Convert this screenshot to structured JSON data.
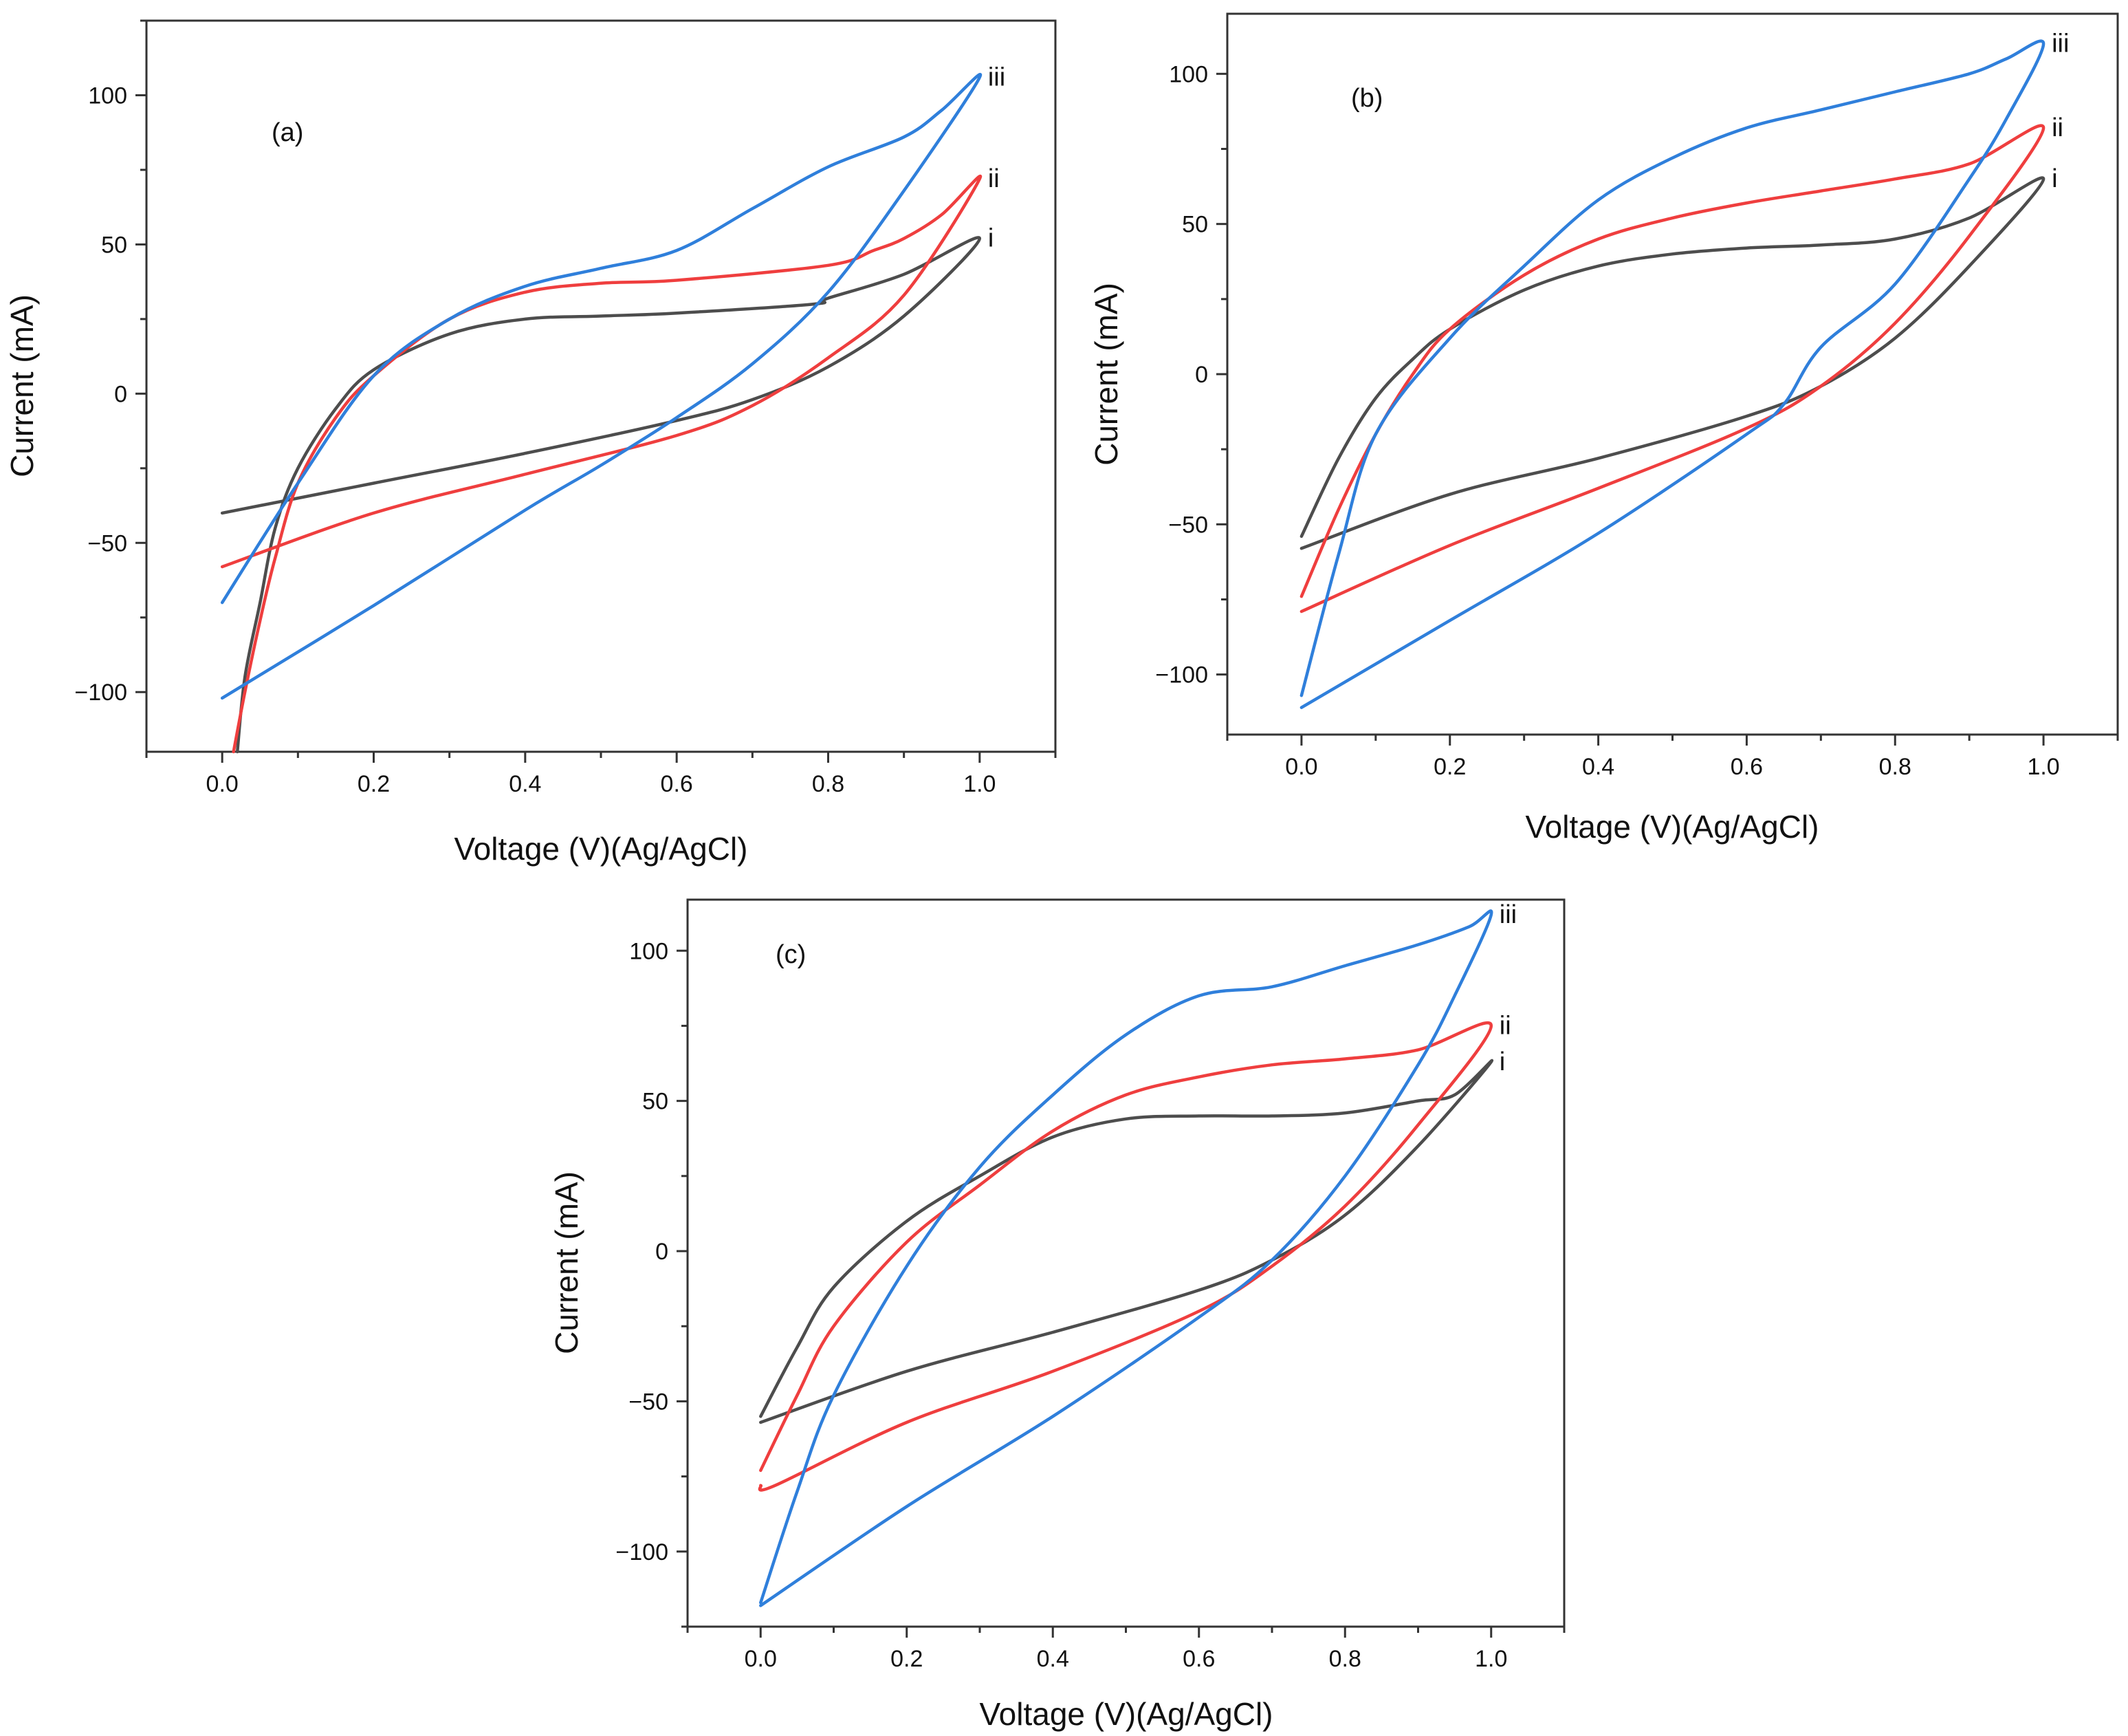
{
  "chart_data": [
    {
      "type": "line",
      "panel": "(a)",
      "xlabel": "Voltage (V)(Ag/AgCl)",
      "ylabel": "Current (mA)",
      "xlim": [
        -0.1,
        1.1
      ],
      "ylim": [
        -120,
        125
      ],
      "xticks": [
        0.0,
        0.2,
        0.4,
        0.6,
        0.8,
        1.0
      ],
      "xtick_labels": [
        "0.0",
        "0.2",
        "0.4",
        "0.6",
        "0.8",
        "1.0"
      ],
      "yticks": [
        -100,
        -50,
        0,
        50,
        100
      ],
      "ytick_labels": [
        "−100",
        "−50",
        "0",
        "50",
        "100"
      ],
      "series": [
        {
          "name": "i",
          "color": "#4d4d4d",
          "x": [
            0.0,
            0.2,
            0.4,
            0.6,
            0.7,
            0.8,
            0.9,
            1.0,
            0.9,
            0.8,
            0.78,
            0.6,
            0.5,
            0.4,
            0.3,
            0.2,
            0.15,
            0.1,
            0.07,
            0.05,
            0.03,
            0.02
          ],
          "y": [
            -40,
            -30,
            -20,
            -9,
            -2,
            9,
            26,
            52,
            40,
            32,
            30,
            27,
            26,
            25,
            20,
            8,
            -5,
            -25,
            -45,
            -70,
            -95,
            -120
          ]
        },
        {
          "name": "ii",
          "color": "#ef3e3e",
          "x": [
            0.0,
            0.2,
            0.4,
            0.6,
            0.7,
            0.8,
            0.9,
            1.0,
            0.95,
            0.9,
            0.86,
            0.8,
            0.6,
            0.5,
            0.4,
            0.3,
            0.2,
            0.15,
            0.1,
            0.07,
            0.05,
            0.03,
            0.015
          ],
          "y": [
            -58,
            -40,
            -27,
            -14,
            -4,
            12,
            33,
            72,
            60,
            52,
            48,
            43,
            38,
            37,
            34,
            25,
            6,
            -8,
            -30,
            -55,
            -76,
            -100,
            -120
          ]
        },
        {
          "name": "iii",
          "color": "#2f7fdb",
          "x": [
            0.0,
            0.2,
            0.4,
            0.5,
            0.6,
            0.7,
            0.8,
            0.9,
            1.0,
            0.95,
            0.9,
            0.8,
            0.7,
            0.6,
            0.5,
            0.4,
            0.3,
            0.2,
            0.1,
            0.0
          ],
          "y": [
            -102,
            -71,
            -39,
            -24,
            -8,
            10,
            34,
            68,
            106,
            95,
            86,
            76,
            62,
            48,
            42,
            36,
            25,
            6,
            -30,
            -70
          ]
        }
      ],
      "curve_labels": [
        "i",
        "ii",
        "iii"
      ]
    },
    {
      "type": "line",
      "panel": "(b)",
      "xlabel": "Voltage (V)(Ag/AgCl)",
      "ylabel": "Current (mA)",
      "xlim": [
        -0.1,
        1.1
      ],
      "ylim": [
        -120,
        120
      ],
      "xticks": [
        0.0,
        0.2,
        0.4,
        0.6,
        0.8,
        1.0
      ],
      "xtick_labels": [
        "0.0",
        "0.2",
        "0.4",
        "0.6",
        "0.8",
        "1.0"
      ],
      "yticks": [
        -100,
        -50,
        0,
        50,
        100
      ],
      "ytick_labels": [
        "−100",
        "−50",
        "0",
        "50",
        "100"
      ],
      "series": [
        {
          "name": "i",
          "color": "#4d4d4d",
          "x": [
            0.0,
            0.2,
            0.4,
            0.6,
            0.7,
            0.8,
            0.9,
            1.0,
            0.9,
            0.8,
            0.7,
            0.6,
            0.5,
            0.4,
            0.3,
            0.2,
            0.15,
            0.1,
            0.05,
            0.0
          ],
          "y": [
            -58,
            -40,
            -28,
            -14,
            -4,
            12,
            36,
            65,
            52,
            45,
            43,
            42,
            40,
            36,
            28,
            15,
            5,
            -8,
            -28,
            -54
          ]
        },
        {
          "name": "ii",
          "color": "#ef3e3e",
          "x": [
            0.0,
            0.2,
            0.4,
            0.6,
            0.7,
            0.8,
            0.9,
            1.0,
            0.9,
            0.8,
            0.7,
            0.6,
            0.5,
            0.4,
            0.3,
            0.2,
            0.15,
            0.1,
            0.05,
            0.0
          ],
          "y": [
            -79,
            -57,
            -38,
            -18,
            -4,
            17,
            46,
            82,
            70,
            65,
            61,
            57,
            52,
            45,
            33,
            15,
            0,
            -20,
            -45,
            -74
          ]
        },
        {
          "name": "iii",
          "color": "#2f7fdb",
          "x": [
            0.0,
            0.2,
            0.4,
            0.6,
            0.65,
            0.7,
            0.8,
            0.9,
            0.95,
            1.0,
            0.95,
            0.9,
            0.8,
            0.7,
            0.6,
            0.5,
            0.4,
            0.3,
            0.2,
            0.1,
            0.05,
            0.0
          ],
          "y": [
            -111,
            -82,
            -53,
            -20,
            -10,
            9,
            30,
            65,
            85,
            110,
            105,
            100,
            94,
            88,
            82,
            72,
            58,
            36,
            12,
            -20,
            -60,
            -107
          ]
        }
      ],
      "curve_labels": [
        "i",
        "ii",
        "iii"
      ]
    },
    {
      "type": "line",
      "panel": "(c)",
      "xlabel": "Voltage (V)(Ag/AgCl)",
      "ylabel": "Current (mA)",
      "xlim": [
        -0.1,
        1.1
      ],
      "ylim": [
        -125,
        117
      ],
      "xticks": [
        0.0,
        0.2,
        0.4,
        0.6,
        0.8,
        1.0
      ],
      "xtick_labels": [
        "0.0",
        "0.2",
        "0.4",
        "0.6",
        "0.8",
        "1.0"
      ],
      "yticks": [
        -100,
        -50,
        0,
        50,
        100
      ],
      "ytick_labels": [
        "−100",
        "−50",
        "0",
        "50",
        "100"
      ],
      "series": [
        {
          "name": "i",
          "color": "#4d4d4d",
          "x": [
            0.0,
            0.2,
            0.4,
            0.6,
            0.7,
            0.8,
            0.9,
            1.0,
            0.95,
            0.9,
            0.8,
            0.7,
            0.6,
            0.5,
            0.4,
            0.3,
            0.2,
            0.1,
            0.05,
            0.0
          ],
          "y": [
            -57,
            -40,
            -27,
            -13,
            -3,
            12,
            35,
            63,
            52,
            50,
            46,
            45,
            45,
            44,
            38,
            25,
            10,
            -12,
            -32,
            -55
          ]
        },
        {
          "name": "ii",
          "color": "#ef3e3e",
          "x": [
            0.0,
            0.02,
            0.2,
            0.4,
            0.6,
            0.7,
            0.8,
            0.9,
            1.0,
            0.9,
            0.8,
            0.7,
            0.6,
            0.5,
            0.4,
            0.3,
            0.2,
            0.1,
            0.05,
            0.0
          ],
          "y": [
            -78,
            -78,
            -57,
            -40,
            -20,
            -5,
            15,
            42,
            75,
            67,
            64,
            62,
            58,
            52,
            40,
            22,
            3,
            -25,
            -48,
            -73
          ]
        },
        {
          "name": "iii",
          "color": "#2f7fdb",
          "x": [
            0.0,
            0.2,
            0.4,
            0.6,
            0.7,
            0.8,
            0.9,
            0.95,
            1.0,
            0.97,
            0.9,
            0.8,
            0.7,
            0.6,
            0.5,
            0.4,
            0.3,
            0.2,
            0.1,
            0.05,
            0.0
          ],
          "y": [
            -118,
            -85,
            -55,
            -22,
            -3,
            25,
            62,
            85,
            112,
            108,
            102,
            95,
            88,
            85,
            72,
            52,
            28,
            -5,
            -48,
            -80,
            -117
          ]
        }
      ],
      "curve_labels": [
        "i",
        "ii",
        "iii"
      ]
    }
  ]
}
